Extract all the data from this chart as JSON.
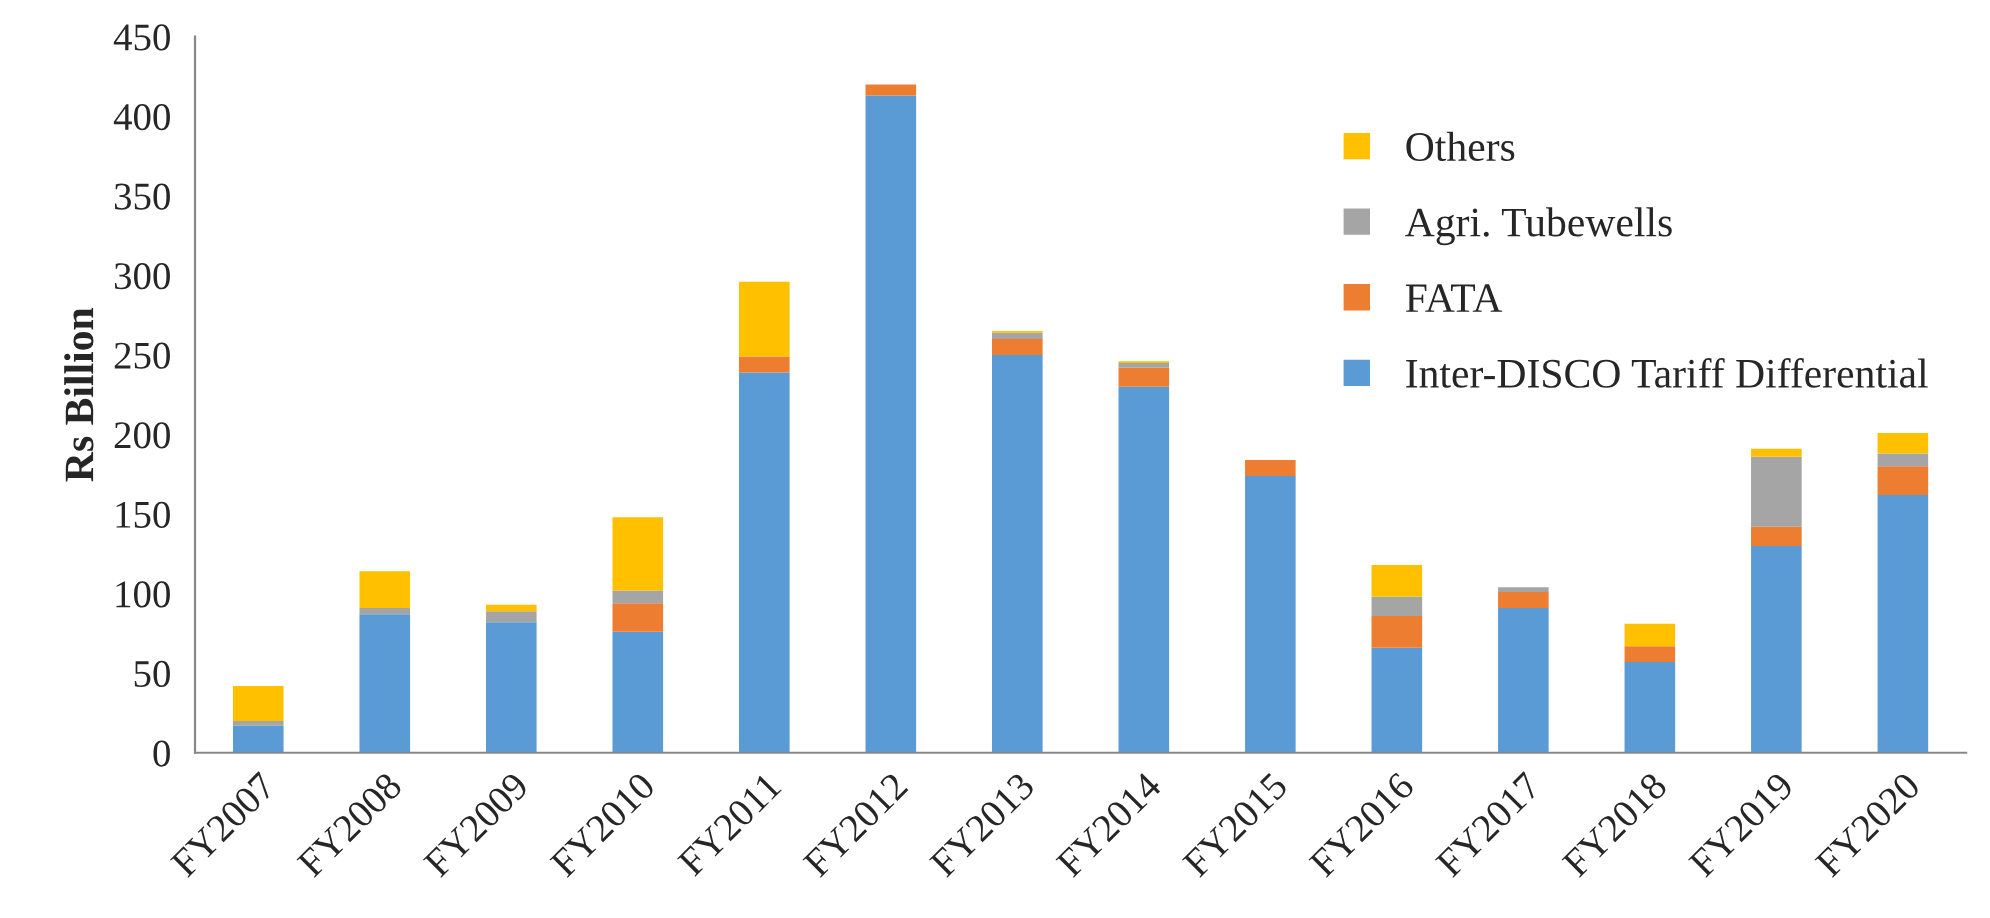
{
  "chart_data": {
    "type": "bar",
    "stacked": true,
    "ylabel": "Rs Billion",
    "categories": [
      "FY2007",
      "FY2008",
      "FY2009",
      "FY2010",
      "FY2011",
      "FY2012",
      "FY2013",
      "FY2014",
      "FY2015",
      "FY2016",
      "FY2017",
      "FY2018",
      "FY2019",
      "FY2020"
    ],
    "series": [
      {
        "name": "Inter-DISCO Tariff Differential",
        "color": "#5b9bd5",
        "values": [
          17,
          87,
          82,
          76,
          239,
          413,
          250,
          230,
          174,
          66,
          91,
          57,
          130,
          162
        ]
      },
      {
        "name": "FATA",
        "color": "#ed7d31",
        "values": [
          0,
          0,
          0,
          18,
          10,
          7,
          10,
          12,
          10,
          20,
          10,
          10,
          12,
          18
        ]
      },
      {
        "name": "Agri. Tubewells",
        "color": "#a5a5a5",
        "values": [
          3,
          4,
          7,
          8,
          0,
          0,
          4,
          3,
          0,
          12,
          3,
          0,
          44,
          8
        ]
      },
      {
        "name": "Others",
        "color": "#ffc000",
        "values": [
          22,
          23,
          4,
          46,
          47,
          0,
          1,
          1,
          0,
          20,
          0,
          14,
          5,
          13
        ]
      }
    ],
    "ylim": [
      0,
      450
    ],
    "yticks": [
      0,
      50,
      100,
      150,
      200,
      250,
      300,
      350,
      400,
      450
    ],
    "grid": false,
    "legend": "top right"
  }
}
